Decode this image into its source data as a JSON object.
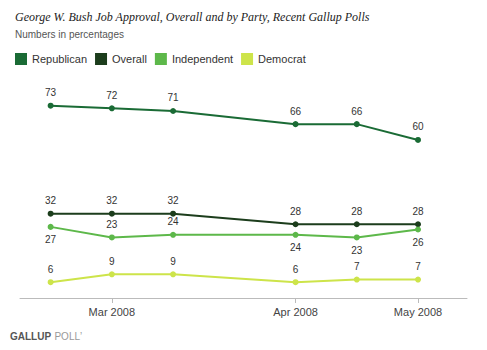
{
  "chart_data": {
    "type": "line",
    "title": "George W. Bush Job Approval, Overall and by Party, Recent Gallup Polls",
    "subtitle": "Numbers in percentages",
    "annotations": [
      "GALLUP",
      "POLLʼ"
    ],
    "x": [
      0,
      1,
      2,
      4,
      5,
      6
    ],
    "xlim": [
      -0.5,
      6.8
    ],
    "xticks": [
      {
        "value": 1,
        "label": "Mar 2008"
      },
      {
        "value": 4,
        "label": "Apr 2008"
      },
      {
        "value": 6,
        "label": "May 2008"
      }
    ],
    "ylim": [
      0,
      82
    ],
    "tick_labels": "x",
    "grid": false,
    "legend": "top left",
    "data_labels": true,
    "marker": "circle",
    "series": [
      {
        "name": "Republican",
        "color": "#1a6b35",
        "values": [
          73,
          72,
          71,
          66,
          66,
          60
        ]
      },
      {
        "name": "Overall",
        "color": "#1c3d1c",
        "values": [
          32,
          32,
          32,
          28,
          28,
          28
        ]
      },
      {
        "name": "Independent",
        "color": "#5db84a",
        "values": [
          27,
          23,
          24,
          24,
          23,
          26
        ]
      },
      {
        "name": "Democrat",
        "color": "#cde44a",
        "values": [
          6,
          9,
          9,
          6,
          7,
          7
        ]
      }
    ]
  }
}
